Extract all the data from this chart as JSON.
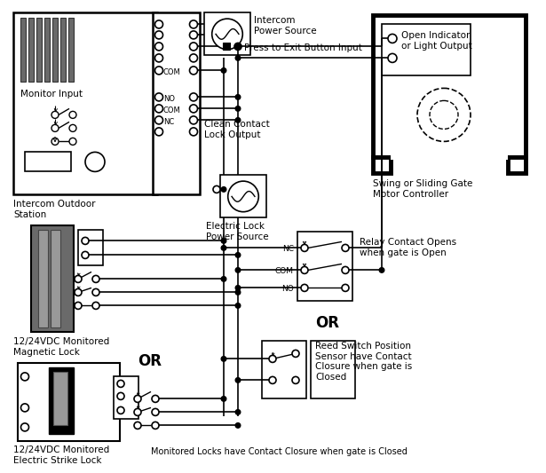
{
  "bg_color": "#ffffff",
  "gray_dark": "#6a6a6a",
  "gray_med": "#999999",
  "gray_light": "#cccccc",
  "labels": {
    "monitor_input": "Monitor Input",
    "intercom_outdoor": "Intercom Outdoor\nStation",
    "intercom_ps": "Intercom\nPower Source",
    "press_to_exit": "Press to Exit Button Input",
    "clean_contact": "Clean Contact\nLock Output",
    "electric_lock_ps": "Electric Lock\nPower Source",
    "swing_gate": "Swing or Sliding Gate\nMotor Controller",
    "open_indicator": "Open Indicator\nor Light Output",
    "relay_contact": "Relay Contact Opens\nwhen gate is Open",
    "reed_switch": "Reed Switch Position\nSensor have Contact\nClosure when gate is\nClosed",
    "mag_lock": "12/24VDC Monitored\nMagnetic Lock",
    "strike_lock": "12/24VDC Monitored\nElectric Strike Lock",
    "monitored_locks": "Monitored Locks have Contact Closure when gate is Closed",
    "or1": "OR",
    "or2": "OR",
    "com1": "COM",
    "no1": "NO",
    "com2": "COM",
    "nc1": "NC",
    "nc_r": "NC",
    "com_r": "COM",
    "no_r": "NO"
  }
}
